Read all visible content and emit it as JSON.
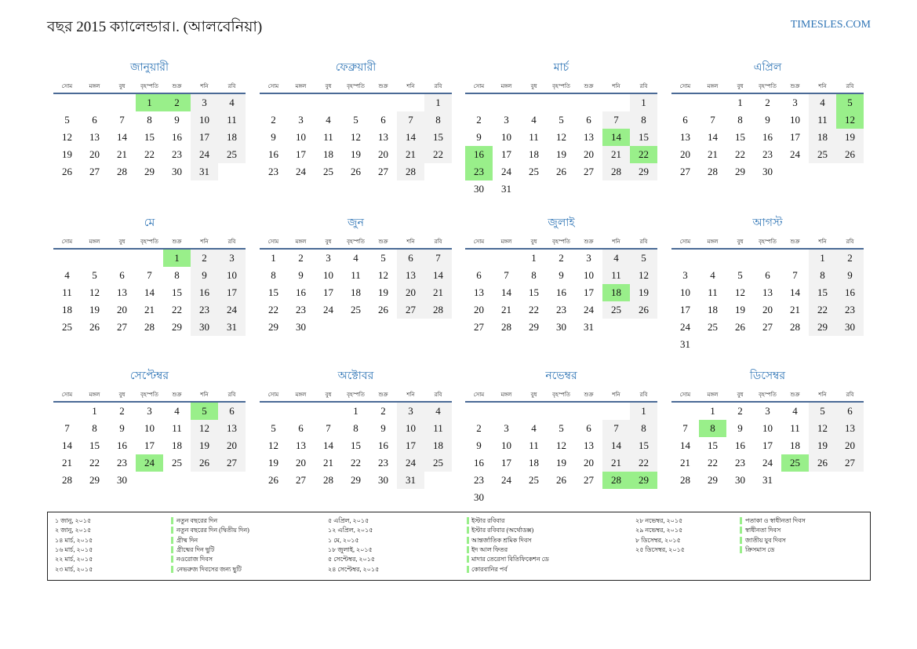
{
  "header": {
    "title": "বছর 2015 ক্যালেন্ডার।. (আলবেনিয়া)",
    "site": "TIMESLES.COM"
  },
  "weekdays": [
    "সোম",
    "মঙ্গল",
    "বুধ",
    "বৃহস্পতি",
    "শুক্র",
    "শনি",
    "রবি"
  ],
  "months": [
    {
      "name": "জানুয়ারী",
      "holidays": [
        1,
        2
      ],
      "weeks": [
        [
          null,
          null,
          null,
          1,
          2,
          3,
          4
        ],
        [
          5,
          6,
          7,
          8,
          9,
          10,
          11
        ],
        [
          12,
          13,
          14,
          15,
          16,
          17,
          18
        ],
        [
          19,
          20,
          21,
          22,
          23,
          24,
          25
        ],
        [
          26,
          27,
          28,
          29,
          30,
          31
        ]
      ]
    },
    {
      "name": "ফেব্রুয়ারী",
      "holidays": [],
      "weeks": [
        [
          null,
          null,
          null,
          null,
          null,
          null,
          1
        ],
        [
          2,
          3,
          4,
          5,
          6,
          7,
          8
        ],
        [
          9,
          10,
          11,
          12,
          13,
          14,
          15
        ],
        [
          16,
          17,
          18,
          19,
          20,
          21,
          22
        ],
        [
          23,
          24,
          25,
          26,
          27,
          28
        ]
      ]
    },
    {
      "name": "মার্চ",
      "holidays": [
        14,
        16,
        22,
        23
      ],
      "weeks": [
        [
          null,
          null,
          null,
          null,
          null,
          null,
          1
        ],
        [
          2,
          3,
          4,
          5,
          6,
          7,
          8
        ],
        [
          9,
          10,
          11,
          12,
          13,
          14,
          15
        ],
        [
          16,
          17,
          18,
          19,
          20,
          21,
          22
        ],
        [
          23,
          24,
          25,
          26,
          27,
          28,
          29
        ],
        [
          30,
          31
        ]
      ]
    },
    {
      "name": "এপ্রিল",
      "holidays": [
        5,
        12
      ],
      "weeks": [
        [
          null,
          null,
          1,
          2,
          3,
          4,
          5
        ],
        [
          6,
          7,
          8,
          9,
          10,
          11,
          12
        ],
        [
          13,
          14,
          15,
          16,
          17,
          18,
          19
        ],
        [
          20,
          21,
          22,
          23,
          24,
          25,
          26
        ],
        [
          27,
          28,
          29,
          30
        ]
      ]
    },
    {
      "name": "মে",
      "holidays": [
        1
      ],
      "weeks": [
        [
          null,
          null,
          null,
          null,
          1,
          2,
          3
        ],
        [
          4,
          5,
          6,
          7,
          8,
          9,
          10
        ],
        [
          11,
          12,
          13,
          14,
          15,
          16,
          17
        ],
        [
          18,
          19,
          20,
          21,
          22,
          23,
          24
        ],
        [
          25,
          26,
          27,
          28,
          29,
          30,
          31
        ]
      ]
    },
    {
      "name": "জুন",
      "holidays": [],
      "weeks": [
        [
          1,
          2,
          3,
          4,
          5,
          6,
          7
        ],
        [
          8,
          9,
          10,
          11,
          12,
          13,
          14
        ],
        [
          15,
          16,
          17,
          18,
          19,
          20,
          21
        ],
        [
          22,
          23,
          24,
          25,
          26,
          27,
          28
        ],
        [
          29,
          30
        ]
      ]
    },
    {
      "name": "জুলাই",
      "holidays": [
        18
      ],
      "weeks": [
        [
          null,
          null,
          1,
          2,
          3,
          4,
          5
        ],
        [
          6,
          7,
          8,
          9,
          10,
          11,
          12
        ],
        [
          13,
          14,
          15,
          16,
          17,
          18,
          19
        ],
        [
          20,
          21,
          22,
          23,
          24,
          25,
          26
        ],
        [
          27,
          28,
          29,
          30,
          31
        ]
      ]
    },
    {
      "name": "আগস্ট",
      "holidays": [],
      "weeks": [
        [
          null,
          null,
          null,
          null,
          null,
          1,
          2
        ],
        [
          3,
          4,
          5,
          6,
          7,
          8,
          9
        ],
        [
          10,
          11,
          12,
          13,
          14,
          15,
          16
        ],
        [
          17,
          18,
          19,
          20,
          21,
          22,
          23
        ],
        [
          24,
          25,
          26,
          27,
          28,
          29,
          30
        ],
        [
          31
        ]
      ]
    },
    {
      "name": "সেপ্টেম্বর",
      "holidays": [
        5,
        24
      ],
      "weeks": [
        [
          null,
          1,
          2,
          3,
          4,
          5,
          6
        ],
        [
          7,
          8,
          9,
          10,
          11,
          12,
          13
        ],
        [
          14,
          15,
          16,
          17,
          18,
          19,
          20
        ],
        [
          21,
          22,
          23,
          24,
          25,
          26,
          27
        ],
        [
          28,
          29,
          30
        ]
      ]
    },
    {
      "name": "অক্টোবর",
      "holidays": [],
      "weeks": [
        [
          null,
          null,
          null,
          1,
          2,
          3,
          4
        ],
        [
          5,
          6,
          7,
          8,
          9,
          10,
          11
        ],
        [
          12,
          13,
          14,
          15,
          16,
          17,
          18
        ],
        [
          19,
          20,
          21,
          22,
          23,
          24,
          25
        ],
        [
          26,
          27,
          28,
          29,
          30,
          31
        ]
      ]
    },
    {
      "name": "নভেম্বর",
      "holidays": [
        28,
        29
      ],
      "weeks": [
        [
          null,
          null,
          null,
          null,
          null,
          null,
          1
        ],
        [
          2,
          3,
          4,
          5,
          6,
          7,
          8
        ],
        [
          9,
          10,
          11,
          12,
          13,
          14,
          15
        ],
        [
          16,
          17,
          18,
          19,
          20,
          21,
          22
        ],
        [
          23,
          24,
          25,
          26,
          27,
          28,
          29
        ],
        [
          30
        ]
      ]
    },
    {
      "name": "ডিসেম্বর",
      "holidays": [
        8,
        25
      ],
      "weeks": [
        [
          null,
          1,
          2,
          3,
          4,
          5,
          6
        ],
        [
          7,
          8,
          9,
          10,
          11,
          12,
          13
        ],
        [
          14,
          15,
          16,
          17,
          18,
          19,
          20
        ],
        [
          21,
          22,
          23,
          24,
          25,
          26,
          27
        ],
        [
          28,
          29,
          30,
          31
        ]
      ]
    }
  ],
  "legend": {
    "columns": [
      [
        {
          "date": "১ জানু, ২০১৫",
          "name": "নতুন বছরের দিন"
        },
        {
          "date": "২ জানু, ২০১৫",
          "name": "নতুন বছরের দিন (দ্বিতীয় দিন)"
        },
        {
          "date": "১৪ মার্চ, ২০১৫",
          "name": "গ্রীষ্ম দিন"
        },
        {
          "date": "১৬ মার্চ, ২০১৫",
          "name": "গ্রীষ্মের দিন ছুটি"
        },
        {
          "date": "২২ মার্চ, ২০১৫",
          "name": "নওরোজ দিবস"
        },
        {
          "date": "২৩ মার্চ, ২০১৫",
          "name": "নেভরুজ দিবসের জন্য ছুটি"
        }
      ],
      [
        {
          "date": "৫ এপ্রিল, ২০১৫",
          "name": "ইস্টার রবিবার"
        },
        {
          "date": "১২ এপ্রিল, ২০১৫",
          "name": "ইস্টার রবিবার (অর্থোডক্স)"
        },
        {
          "date": "১ মে, ২০১৫",
          "name": "আন্তর্জাতিক শ্রমিক দিবস"
        },
        {
          "date": "১৮ জুলাই, ২০১৫",
          "name": "ইদ আল ফিতর"
        },
        {
          "date": "৫ সেপ্টেম্বর, ২০১৫",
          "name": "মাদার তেরেসা বিতিফিকেশন ডে"
        },
        {
          "date": "২৪ সেপ্টেম্বর, ২০১৫",
          "name": "কোরবানির পর্ব"
        }
      ],
      [
        {
          "date": "২৮ নভেম্বর, ২০১৫",
          "name": "পতাকা ও স্বাধীনতা দিবস"
        },
        {
          "date": "২৯ নভেম্বর, ২০১৫",
          "name": "স্বাধীনতা দিবস"
        },
        {
          "date": "৮ ডিসেম্বর, ২০১৫",
          "name": "জাতীয় যুব দিবস"
        },
        {
          "date": "২৫ ডিসেম্বর, ২০১৫",
          "name": "ক্রিসমাস ডে"
        }
      ]
    ]
  }
}
